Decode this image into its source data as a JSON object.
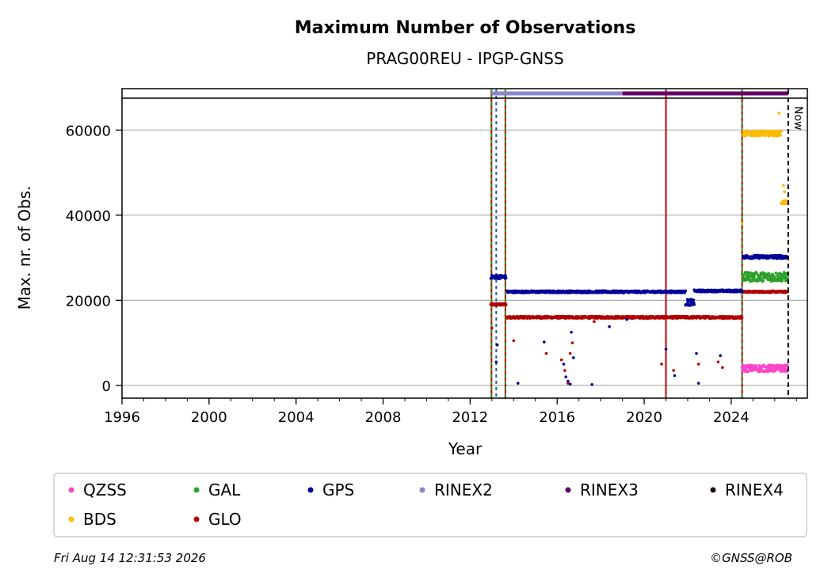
{
  "chart_data": {
    "type": "scatter",
    "title": "Maximum Number of Observations",
    "subtitle": "PRAG00REU - IPGP-GNSS",
    "xlabel": "Year",
    "ylabel": "Max. nr. of Obs.",
    "xlim": [
      1996,
      2027.5
    ],
    "ylim": [
      -3000,
      67500
    ],
    "x_ticks": [
      1996,
      2000,
      2004,
      2008,
      2012,
      2016,
      2020,
      2024
    ],
    "y_ticks": [
      0,
      20000,
      40000,
      60000
    ],
    "x_tick_labels": [
      "1996",
      "2000",
      "2004",
      "2008",
      "2012",
      "2016",
      "2020",
      "2024"
    ],
    "y_tick_labels": [
      "0",
      "20000",
      "40000",
      "60000"
    ],
    "grid": "horizontal",
    "legend_position": "bottom",
    "now_label": "Now",
    "now_year": 2026.62,
    "series": [
      {
        "name": "QZSS",
        "color": "#ff44cc",
        "segments": [
          {
            "x0": 2024.5,
            "x1": 2026.6,
            "y": 4000,
            "spread": 1600
          }
        ]
      },
      {
        "name": "GAL",
        "color": "#2ca02c",
        "segments": [
          {
            "x0": 2024.5,
            "x1": 2026.6,
            "y": 25500,
            "spread": 2200
          }
        ]
      },
      {
        "name": "GPS",
        "color": "#000099",
        "segments": [
          {
            "x0": 2012.95,
            "x1": 2013.65,
            "y": 25500,
            "spread": 900
          },
          {
            "x0": 2013.7,
            "x1": 2021.9,
            "y": 22000,
            "spread": 500
          },
          {
            "x0": 2021.9,
            "x1": 2022.3,
            "y": 19500,
            "spread": 1500
          },
          {
            "x0": 2022.3,
            "x1": 2024.5,
            "y": 22200,
            "spread": 500
          },
          {
            "x0": 2024.55,
            "x1": 2026.6,
            "y": 30200,
            "spread": 800
          }
        ],
        "outliers": [
          [
            2013.2,
            5500
          ],
          [
            2013.25,
            9500
          ],
          [
            2014.2,
            500
          ],
          [
            2015.4,
            10200
          ],
          [
            2016.3,
            5000
          ],
          [
            2016.4,
            2000
          ],
          [
            2016.5,
            1000
          ],
          [
            2016.6,
            300
          ],
          [
            2016.65,
            12500
          ],
          [
            2016.75,
            6500
          ],
          [
            2017.6,
            200
          ],
          [
            2018.4,
            13800
          ],
          [
            2019.2,
            15500
          ],
          [
            2021.0,
            8500
          ],
          [
            2021.4,
            2300
          ],
          [
            2022.4,
            7500
          ],
          [
            2022.5,
            500
          ],
          [
            2023.5,
            7000
          ]
        ]
      },
      {
        "name": "RINEX2",
        "color": "#8888cc"
      },
      {
        "name": "RINEX3",
        "color": "#660066"
      },
      {
        "name": "RINEX4",
        "color": "#220022"
      },
      {
        "name": "BDS",
        "color": "#ffbb00",
        "segments": [
          {
            "x0": 2024.55,
            "x1": 2026.3,
            "y": 59200,
            "spread": 1200
          },
          {
            "x0": 2026.3,
            "x1": 2026.6,
            "y": 43000,
            "spread": 800
          }
        ],
        "outliers": [
          [
            2024.5,
            38000
          ],
          [
            2026.4,
            47000
          ],
          [
            2026.45,
            45500
          ],
          [
            2026.2,
            64000
          ]
        ]
      },
      {
        "name": "GLO",
        "color": "#b30000",
        "segments": [
          {
            "x0": 2012.95,
            "x1": 2013.65,
            "y": 19000,
            "spread": 500
          },
          {
            "x0": 2013.7,
            "x1": 2024.5,
            "y": 16000,
            "spread": 500
          },
          {
            "x0": 2024.55,
            "x1": 2026.6,
            "y": 22000,
            "spread": 400
          }
        ],
        "outliers": [
          [
            2013.0,
            13500
          ],
          [
            2014.0,
            10500
          ],
          [
            2015.5,
            7500
          ],
          [
            2016.2,
            6000
          ],
          [
            2016.35,
            3500
          ],
          [
            2016.5,
            500
          ],
          [
            2016.6,
            7500
          ],
          [
            2016.7,
            10000
          ],
          [
            2017.7,
            15000
          ],
          [
            2020.8,
            5000
          ],
          [
            2021.35,
            3500
          ],
          [
            2022.5,
            5000
          ],
          [
            2023.4,
            5500
          ],
          [
            2023.6,
            4200
          ]
        ]
      }
    ],
    "legend_order": [
      "QZSS",
      "GAL",
      "GPS",
      "RINEX2",
      "RINEX3",
      "RINEX4",
      "BDS",
      "GLO"
    ],
    "vertical_lines": [
      {
        "year": 2012.98,
        "color": "#b30000",
        "style": "solid"
      },
      {
        "year": 2012.98,
        "color": "#2ca02c",
        "style": "dashed"
      },
      {
        "year": 2013.2,
        "color": "#1f5f8b",
        "style": "dashed"
      },
      {
        "year": 2013.62,
        "color": "#b30000",
        "style": "solid"
      },
      {
        "year": 2013.62,
        "color": "#2ca02c",
        "style": "dashed"
      },
      {
        "year": 2021.0,
        "color": "#cc0000",
        "style": "solid"
      },
      {
        "year": 2024.5,
        "color": "#b30000",
        "style": "solid"
      },
      {
        "year": 2024.5,
        "color": "#2ca02c",
        "style": "dashed"
      }
    ],
    "rinex_bars": [
      {
        "name": "RINEX2",
        "x0": 2012.98,
        "x1": 2019.0
      },
      {
        "name": "RINEX3",
        "x0": 2019.0,
        "x1": 2026.62
      }
    ]
  },
  "footer": {
    "timestamp": "Fri Aug 14 12:31:53 2026",
    "credit": "©GNSS@ROB"
  }
}
